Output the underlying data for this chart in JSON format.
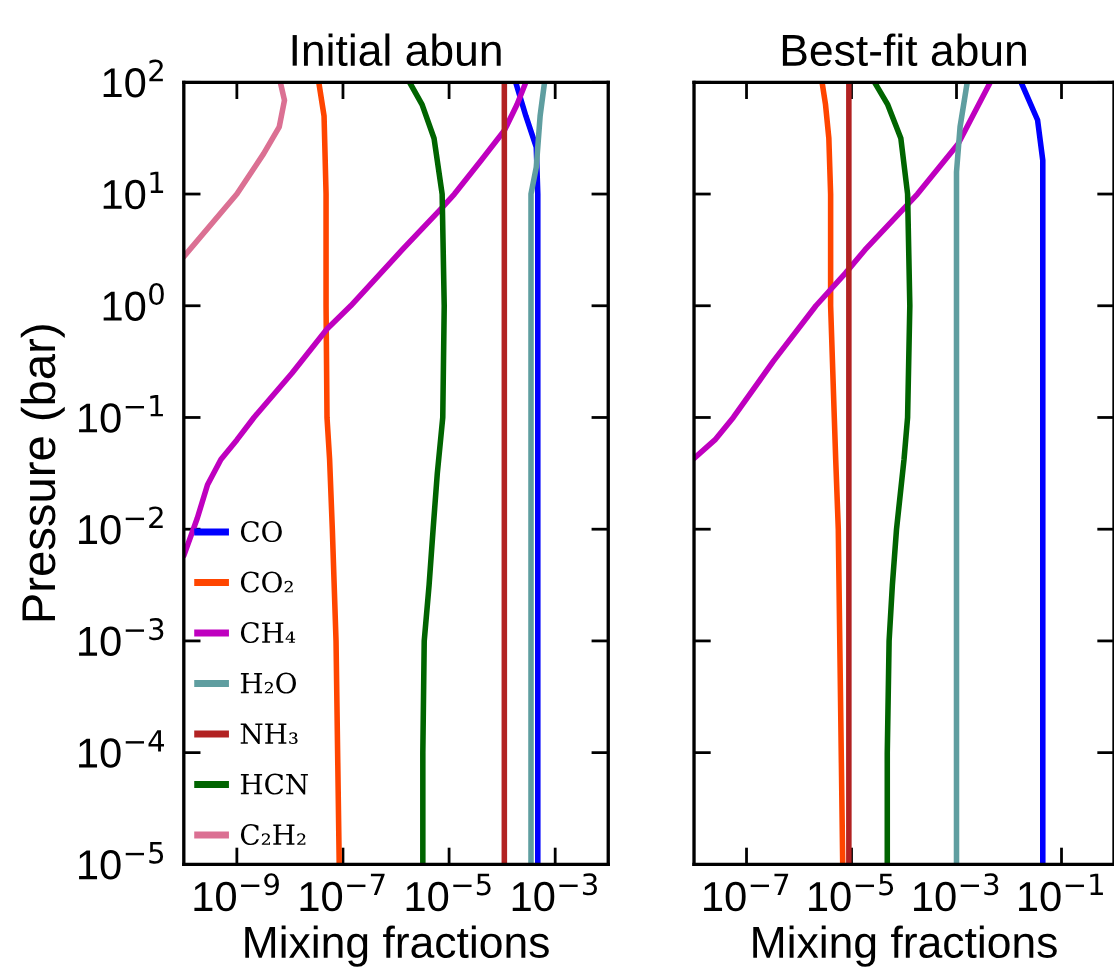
{
  "chart_data": [
    {
      "type": "line",
      "title": "Initial abun",
      "xlabel": "Mixing fractions",
      "ylabel": "Pressure (bar)",
      "log": "xy",
      "legend": "lower left",
      "line_style": "solid",
      "marker": "none",
      "xlim": [
        1e-10,
        0.01
      ],
      "ylim": [
        1e-05,
        100
      ],
      "xticks": [
        {
          "value": 1e-09,
          "label": "10$^{−9}$"
        },
        {
          "value": 1e-07,
          "label": "10$^{−7}$"
        },
        {
          "value": 1e-05,
          "label": "10$^{−5}$"
        },
        {
          "value": 0.001,
          "label": "10$^{−3}$"
        }
      ],
      "yticks": [
        {
          "value": 1e-05,
          "label": "10$^{−5}$"
        },
        {
          "value": 0.0001,
          "label": "10$^{−4}$"
        },
        {
          "value": 0.001,
          "label": "10$^{−3}$"
        },
        {
          "value": 0.01,
          "label": "10$^{−2}$"
        },
        {
          "value": 0.1,
          "label": "10$^{−1}$"
        },
        {
          "value": 1,
          "label": "10$^{0}$"
        },
        {
          "value": 10,
          "label": "10$^{1}$"
        },
        {
          "value": 100,
          "label": "10$^{2}$"
        }
      ],
      "series": [
        {
          "name": "CO",
          "color": "#0000ff",
          "x": [
            0.00047,
            0.00047,
            0.00044,
            0.00028,
            0.00018
          ],
          "values": [
            1e-05,
            10,
            26.3,
            50,
            100
          ]
        },
        {
          "name": "CO₂",
          "color": "#ff4500",
          "x": [
            8.5e-08,
            7.4e-08,
            6.3e-08,
            5.6e-08,
            5e-08,
            4.8e-08,
            4.8e-08,
            4.4e-08,
            3.5e-08
          ],
          "values": [
            1e-05,
            0.001,
            0.01,
            0.042,
            0.1,
            1,
            10,
            50,
            100
          ]
        },
        {
          "name": "CH₄",
          "color": "#bf00bf",
          "x": [
            1e-10,
            1.8e-10,
            2.8e-10,
            5e-10,
            1e-09,
            2.1e-09,
            1.1e-08,
            5e-08,
            1.4e-07,
            1.3e-06,
            7.1e-06,
            1.26e-05,
            4e-05,
            0.00011,
            0.00019,
            0.00028
          ],
          "values": [
            0.0058,
            0.0126,
            0.025,
            0.042,
            0.063,
            0.1,
            0.25,
            0.62,
            1,
            3.16,
            7.4,
            10,
            20,
            37,
            63,
            100
          ]
        },
        {
          "name": "H₂O",
          "color": "#5f9ea0",
          "x": [
            0.00035,
            0.00035,
            0.00044,
            0.00052,
            0.00063
          ],
          "values": [
            1e-05,
            10,
            17.4,
            50,
            100
          ]
        },
        {
          "name": "NH₃",
          "color": "#b22222",
          "x": [
            0.00011,
            0.00011
          ],
          "values": [
            1e-05,
            100
          ]
        },
        {
          "name": "HCN",
          "color": "#006400",
          "x": [
            3.2e-06,
            3.2e-06,
            3.4e-06,
            4.2e-06,
            5e-06,
            6e-06,
            7.6e-06,
            8.1e-06,
            7.4e-06,
            5.2e-06,
            3.1e-06,
            1.8e-06
          ],
          "values": [
            1e-05,
            0.0001,
            0.001,
            0.00316,
            0.01,
            0.0316,
            0.1,
            1,
            10,
            31.6,
            63.1,
            100
          ]
        },
        {
          "name": "C₂H₂",
          "color": "#db7093",
          "x": [
            1e-10,
            1e-09,
            3.2e-09,
            6.3e-09,
            7.9e-09,
            6.6e-09
          ],
          "values": [
            2.75,
            10,
            23,
            40,
            69,
            100
          ]
        }
      ]
    },
    {
      "type": "line",
      "title": "Best-fit abun",
      "xlabel": "Mixing fractions",
      "log": "xy",
      "tick_labels": "x",
      "line_style": "solid",
      "marker": "none",
      "xlim": [
        1e-08,
        1
      ],
      "ylim": [
        1e-05,
        100
      ],
      "xticks": [
        {
          "value": 1e-07,
          "label": "10$^{−7}$"
        },
        {
          "value": 1e-05,
          "label": "10$^{−5}$"
        },
        {
          "value": 0.001,
          "label": "10$^{−3}$"
        },
        {
          "value": 0.1,
          "label": "10$^{−1}$"
        }
      ],
      "yticks": [
        {
          "value": 1e-05,
          "label": null
        },
        {
          "value": 0.0001,
          "label": null
        },
        {
          "value": 0.001,
          "label": null
        },
        {
          "value": 0.01,
          "label": null
        },
        {
          "value": 0.1,
          "label": null
        },
        {
          "value": 1,
          "label": null
        },
        {
          "value": 10,
          "label": null
        },
        {
          "value": 100,
          "label": null
        }
      ],
      "series": [
        {
          "color": "#0000ff",
          "x": [
            0.044,
            0.044,
            0.035,
            0.017
          ],
          "values": [
            1e-05,
            20,
            46,
            100
          ]
        },
        {
          "color": "#ff4500",
          "x": [
            6.8e-06,
            5.6e-06,
            5e-06,
            4.7e-06,
            4e-06,
            4e-06,
            3.7e-06,
            3.2e-06,
            2.75e-06
          ],
          "values": [
            1e-05,
            0.01,
            0.042,
            0.1,
            1,
            10,
            31.6,
            63.1,
            100
          ]
        },
        {
          "color": "#bf00bf",
          "x": [
            1e-08,
            2.5e-08,
            5.6e-08,
            3.2e-07,
            2.1e-06,
            7.6e-06,
            1.8e-05,
            0.00018,
            0.00107,
            0.0044
          ],
          "values": [
            0.043,
            0.063,
            0.1,
            0.316,
            1,
            1.95,
            3.16,
            10,
            28,
            100
          ]
        },
        {
          "color": "#5f9ea0",
          "x": [
            0.001,
            0.001,
            0.00117,
            0.0016
          ],
          "values": [
            1e-05,
            15.8,
            40,
            100
          ]
        },
        {
          "color": "#b22222",
          "x": [
            8.9e-06,
            8.9e-06
          ],
          "values": [
            1e-05,
            100
          ]
        },
        {
          "color": "#006400",
          "x": [
            4.8e-05,
            4.8e-05,
            5.2e-05,
            6e-05,
            7.2e-05,
            0.0001,
            0.000117,
            0.000129,
            0.000117,
            8.7e-05,
            4.9e-05,
            2.75e-05
          ],
          "values": [
            1e-05,
            0.0001,
            0.001,
            0.00316,
            0.01,
            0.042,
            0.1,
            1,
            10,
            31.6,
            63.1,
            100
          ]
        }
      ]
    }
  ]
}
